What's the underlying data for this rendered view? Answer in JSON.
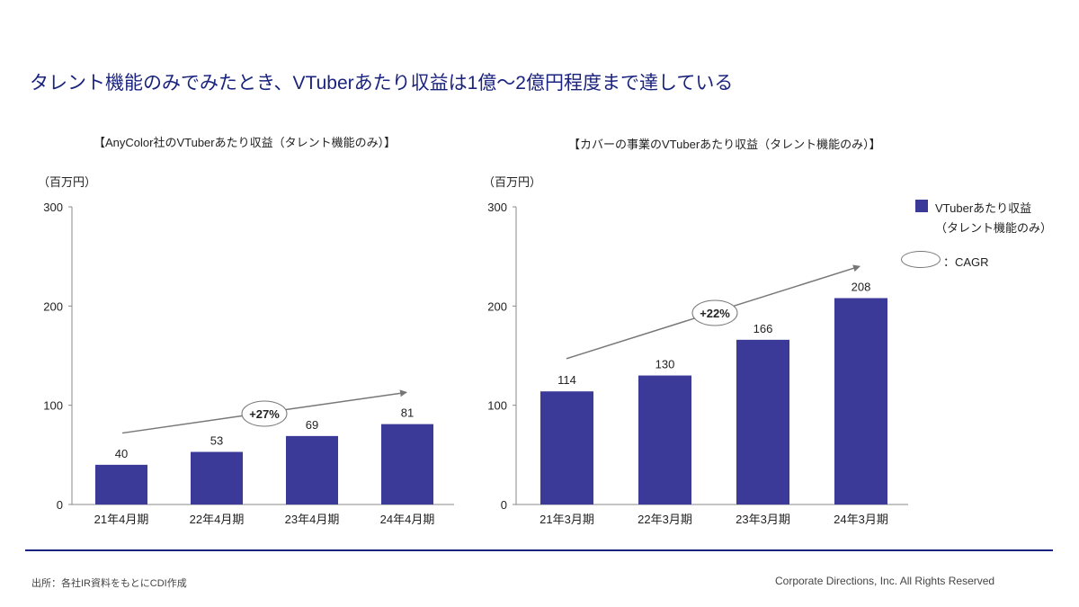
{
  "headline": "タレント機能のみでみたとき、VTuberあたり収益は1億～2億円程度まで達している",
  "colors": {
    "bar": "#3b3a98",
    "accent": "#1a237e",
    "arrow": "#777777"
  },
  "legend": {
    "series_label_line1": "VTuberあたり収益",
    "series_label_line2": "（タレント機能のみ）",
    "cagr_label": "：CAGR"
  },
  "footer": {
    "source": "出所：各社IR資料をもとにCDI作成",
    "copyright": "Corporate Directions, Inc. All Rights Reserved"
  },
  "chart_data": [
    {
      "type": "bar",
      "title": "【AnyColor社のVTuberあたり収益（タレント機能のみ）】",
      "unit_label": "（百万円）",
      "categories": [
        "21年4月期",
        "22年4月期",
        "23年4月期",
        "24年4月期"
      ],
      "values": [
        40,
        53,
        69,
        81
      ],
      "ylim": [
        0,
        300
      ],
      "yticks": [
        0,
        100,
        200,
        300
      ],
      "cagr": "+27%",
      "trend_arrow": {
        "from_value": 72,
        "to_value": 113
      }
    },
    {
      "type": "bar",
      "title": "【カバーの事業のVTuberあたり収益（タレント機能のみ）】",
      "unit_label": "（百万円）",
      "categories": [
        "21年3月期",
        "22年3月期",
        "23年3月期",
        "24年3月期"
      ],
      "values": [
        114,
        130,
        166,
        208
      ],
      "ylim": [
        0,
        300
      ],
      "yticks": [
        0,
        100,
        200,
        300
      ],
      "cagr": "+22%",
      "trend_arrow": {
        "from_value": 147,
        "to_value": 240
      }
    }
  ]
}
